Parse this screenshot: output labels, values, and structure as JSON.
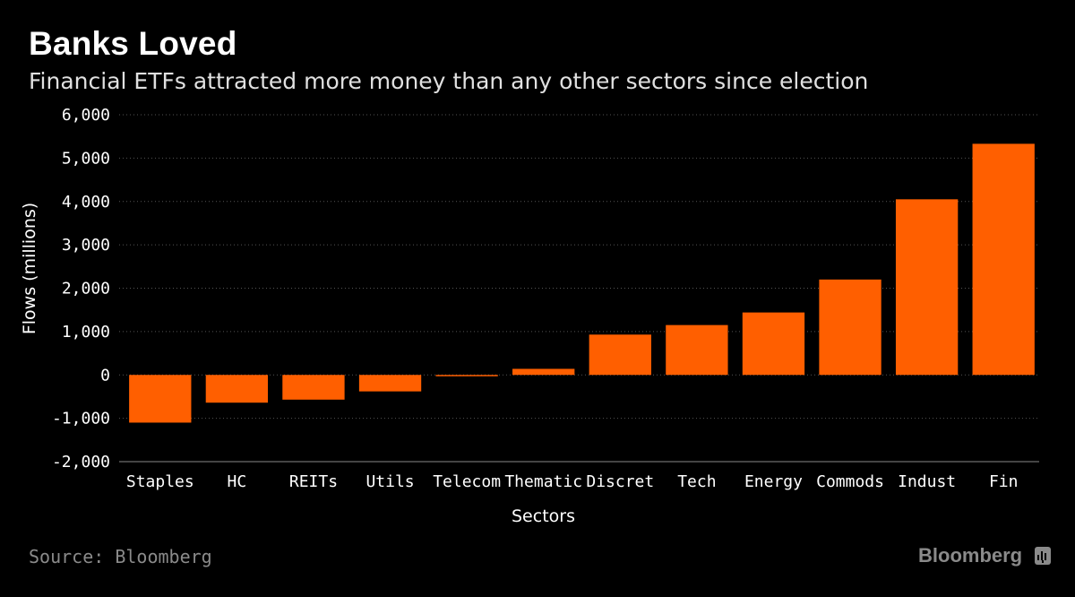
{
  "header": {
    "title": "Banks Loved",
    "subtitle": "Financial ETFs attracted more money than any other sectors since election"
  },
  "footer": {
    "source": "Source: Bloomberg",
    "brand": "Bloomberg",
    "brand_icon": "bloomberg-terminal-icon"
  },
  "colors": {
    "background": "#000000",
    "bar": "#ff5f00",
    "grid": "#555555",
    "muted_text": "#8a8a8a"
  },
  "chart_data": {
    "type": "bar",
    "title": "Banks Loved",
    "subtitle": "Financial ETFs attracted more money than any other sectors since election",
    "xlabel": "Sectors",
    "ylabel": "Flows (millions)",
    "ylim": [
      -2000,
      6000
    ],
    "yticks": [
      -2000,
      -1000,
      0,
      1000,
      2000,
      3000,
      4000,
      5000,
      6000
    ],
    "ytick_labels": [
      "-2,000",
      "-1,000",
      "0",
      "1,000",
      "2,000",
      "3,000",
      "4,000",
      "5,000",
      "6,000"
    ],
    "categories": [
      "Staples",
      "HC",
      "REITs",
      "Utils",
      "Telecom",
      "Thematic",
      "Discret",
      "Tech",
      "Energy",
      "Commods",
      "Indust",
      "Fin"
    ],
    "values": [
      -1100,
      -640,
      -570,
      -380,
      -20,
      140,
      930,
      1150,
      1440,
      2200,
      4050,
      5330
    ],
    "grid": true,
    "legend": "none"
  }
}
